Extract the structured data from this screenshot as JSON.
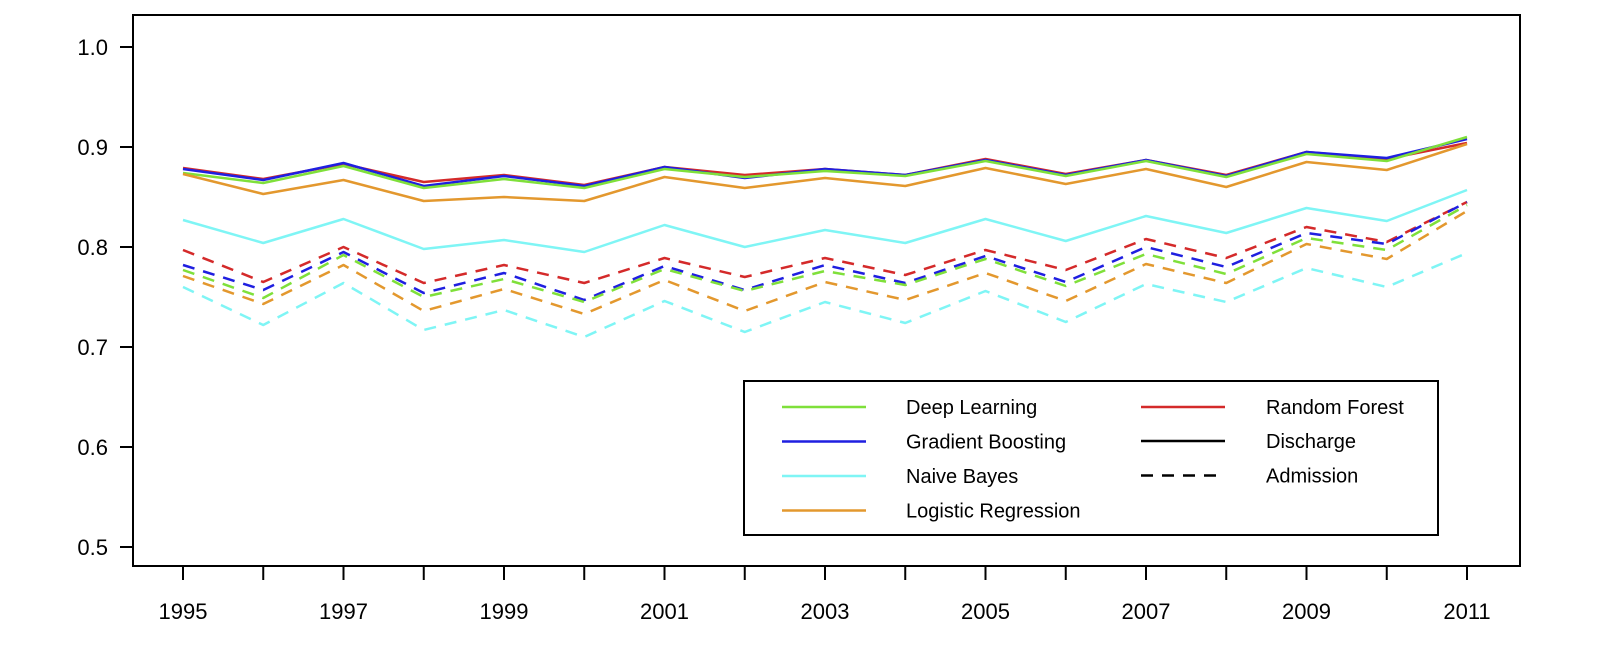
{
  "chart_data": {
    "type": "line",
    "title": "",
    "xlabel": "",
    "ylabel": "",
    "x": [
      1995,
      1996,
      1997,
      1998,
      1999,
      2000,
      2001,
      2002,
      2003,
      2004,
      2005,
      2006,
      2007,
      2008,
      2009,
      2010,
      2011
    ],
    "x_tick_labels": [
      "1995",
      "1997",
      "1999",
      "2001",
      "2003",
      "2005",
      "2007",
      "2009",
      "2011"
    ],
    "y_tick_labels": [
      "0.5",
      "0.6",
      "0.7",
      "0.8",
      "0.9",
      "1.0"
    ],
    "ylim": [
      0.5,
      1.0
    ],
    "grid": false,
    "legend_placement": "bottom-right",
    "legend": {
      "models": [
        {
          "name": "Deep Learning",
          "color": "#7fe03a"
        },
        {
          "name": "Gradient Boosting",
          "color": "#1f1fe0"
        },
        {
          "name": "Naive Bayes",
          "color": "#7ff5f5"
        },
        {
          "name": "Logistic Regression",
          "color": "#e3982e"
        },
        {
          "name": "Random Forest",
          "color": "#d42a2a"
        }
      ],
      "line_types": [
        {
          "name": "Discharge",
          "style": "solid"
        },
        {
          "name": "Admission",
          "style": "dashed"
        }
      ]
    },
    "series": [
      {
        "model": "Random Forest",
        "type": "Discharge",
        "color": "#d42a2a",
        "style": "solid",
        "values": [
          0.879,
          0.868,
          0.883,
          0.865,
          0.872,
          0.862,
          0.88,
          0.872,
          0.878,
          0.872,
          0.888,
          0.873,
          0.887,
          0.872,
          0.895,
          0.888,
          0.904
        ]
      },
      {
        "model": "Gradient Boosting",
        "type": "Discharge",
        "color": "#1f1fe0",
        "style": "solid",
        "values": [
          0.878,
          0.867,
          0.884,
          0.861,
          0.871,
          0.861,
          0.88,
          0.869,
          0.878,
          0.872,
          0.887,
          0.872,
          0.887,
          0.871,
          0.895,
          0.889,
          0.908
        ]
      },
      {
        "model": "Deep Learning",
        "type": "Discharge",
        "color": "#7fe03a",
        "style": "solid",
        "values": [
          0.874,
          0.864,
          0.881,
          0.859,
          0.868,
          0.859,
          0.878,
          0.87,
          0.876,
          0.871,
          0.886,
          0.871,
          0.886,
          0.87,
          0.893,
          0.886,
          0.91
        ]
      },
      {
        "model": "Logistic Regression",
        "type": "Discharge",
        "color": "#e3982e",
        "style": "solid",
        "values": [
          0.873,
          0.853,
          0.867,
          0.846,
          0.85,
          0.846,
          0.87,
          0.859,
          0.869,
          0.861,
          0.879,
          0.863,
          0.878,
          0.86,
          0.885,
          0.877,
          0.903
        ]
      },
      {
        "model": "Naive Bayes",
        "type": "Discharge",
        "color": "#7ff5f5",
        "style": "solid",
        "values": [
          0.827,
          0.804,
          0.828,
          0.798,
          0.807,
          0.795,
          0.822,
          0.8,
          0.817,
          0.804,
          0.828,
          0.806,
          0.831,
          0.814,
          0.839,
          0.826,
          0.857
        ]
      },
      {
        "model": "Random Forest",
        "type": "Admission",
        "color": "#d42a2a",
        "style": "dashed",
        "values": [
          0.797,
          0.765,
          0.8,
          0.764,
          0.782,
          0.764,
          0.789,
          0.77,
          0.789,
          0.772,
          0.797,
          0.777,
          0.808,
          0.789,
          0.82,
          0.805,
          0.845
        ]
      },
      {
        "model": "Gradient Boosting",
        "type": "Admission",
        "color": "#1f1fe0",
        "style": "dashed",
        "values": [
          0.782,
          0.757,
          0.795,
          0.754,
          0.774,
          0.747,
          0.781,
          0.757,
          0.782,
          0.764,
          0.791,
          0.765,
          0.8,
          0.78,
          0.814,
          0.803,
          0.845
        ]
      },
      {
        "model": "Deep Learning",
        "type": "Admission",
        "color": "#7fe03a",
        "style": "dashed",
        "values": [
          0.777,
          0.749,
          0.792,
          0.75,
          0.768,
          0.745,
          0.778,
          0.756,
          0.776,
          0.762,
          0.788,
          0.761,
          0.793,
          0.773,
          0.809,
          0.797,
          0.842
        ]
      },
      {
        "model": "Logistic Regression",
        "type": "Admission",
        "color": "#e3982e",
        "style": "dashed",
        "values": [
          0.771,
          0.743,
          0.782,
          0.736,
          0.758,
          0.733,
          0.767,
          0.736,
          0.765,
          0.747,
          0.774,
          0.746,
          0.783,
          0.764,
          0.803,
          0.788,
          0.836
        ]
      },
      {
        "model": "Naive Bayes",
        "type": "Admission",
        "color": "#7ff5f5",
        "style": "dashed",
        "values": [
          0.76,
          0.722,
          0.764,
          0.717,
          0.737,
          0.71,
          0.746,
          0.715,
          0.745,
          0.724,
          0.756,
          0.725,
          0.763,
          0.745,
          0.779,
          0.76,
          0.794
        ]
      }
    ]
  }
}
